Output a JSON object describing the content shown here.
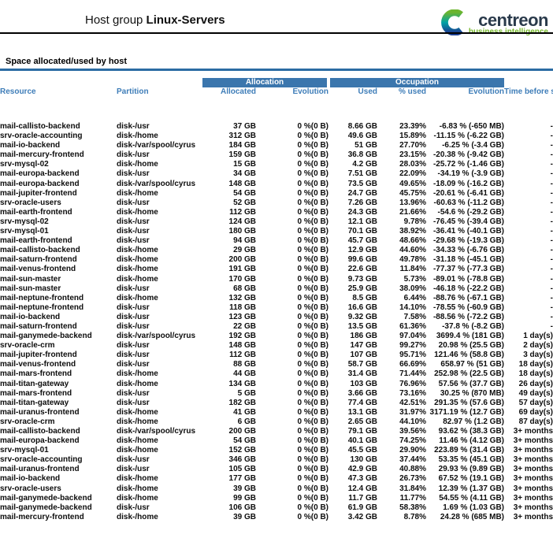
{
  "header": {
    "title_label": "Host group",
    "title_value": "Linux-Servers",
    "logo": {
      "brand": "centreon",
      "tagline": "business intelligence"
    }
  },
  "section_title": "Space allocated/used by host",
  "table": {
    "group_headers": {
      "allocation": "Allocation",
      "occupation": "Occupation"
    },
    "column_headers": {
      "resource": "Resource",
      "partition": "Partition",
      "allocated": "Allocated",
      "allocation_evolution": "Evolution",
      "used": "Used",
      "pct_used": "% used",
      "occupation_evolution": "Evolution",
      "time_before_saturation": "Time before saturation"
    },
    "column_keys": [
      "resource",
      "partition",
      "allocated",
      "allocation-evolution",
      "used",
      "pct-used",
      "occupation-evolution",
      "time-before-saturation"
    ],
    "rows": [
      [
        "mail-callisto-backend",
        "disk-/usr",
        "37 GB",
        "0 %(0 B)",
        "8.66 GB",
        "23.39%",
        "-6.83 % (-650 MB)",
        "-"
      ],
      [
        "srv-oracle-accounting",
        "disk-/home",
        "312 GB",
        "0 %(0 B)",
        "49.6 GB",
        "15.89%",
        "-11.15 % (-6.22 GB)",
        "-"
      ],
      [
        "mail-io-backend",
        "disk-/var/spool/cyrus",
        "184 GB",
        "0 %(0 B)",
        "51 GB",
        "27.70%",
        "-6.25 % (-3.4 GB)",
        "-"
      ],
      [
        "mail-mercury-frontend",
        "disk-/usr",
        "159 GB",
        "0 %(0 B)",
        "36.8 GB",
        "23.15%",
        "-20.38 % (-9.42 GB)",
        "-"
      ],
      [
        "srv-mysql-02",
        "disk-/home",
        "15 GB",
        "0 %(0 B)",
        "4.2 GB",
        "28.03%",
        "-25.72 % (-1.46 GB)",
        "-"
      ],
      [
        "mail-europa-backend",
        "disk-/usr",
        "34 GB",
        "0 %(0 B)",
        "7.51 GB",
        "22.09%",
        "-34.19 % (-3.9 GB)",
        "-"
      ],
      [
        "mail-europa-backend",
        "disk-/var/spool/cyrus",
        "148 GB",
        "0 %(0 B)",
        "73.5 GB",
        "49.65%",
        "-18.09 % (-16.2 GB)",
        "-"
      ],
      [
        "mail-jupiter-frontend",
        "disk-/home",
        "54 GB",
        "0 %(0 B)",
        "24.7 GB",
        "45.75%",
        "-20.61 % (-6.41 GB)",
        "-"
      ],
      [
        "srv-oracle-users",
        "disk-/usr",
        "52 GB",
        "0 %(0 B)",
        "7.26 GB",
        "13.96%",
        "-60.63 % (-11.2 GB)",
        "-"
      ],
      [
        "mail-earth-frontend",
        "disk-/home",
        "112 GB",
        "0 %(0 B)",
        "24.3 GB",
        "21.66%",
        "-54.6 % (-29.2 GB)",
        "-"
      ],
      [
        "srv-mysql-02",
        "disk-/usr",
        "124 GB",
        "0 %(0 B)",
        "12.1 GB",
        "9.78%",
        "-76.45 % (-39.4 GB)",
        "-"
      ],
      [
        "srv-mysql-01",
        "disk-/usr",
        "180 GB",
        "0 %(0 B)",
        "70.1 GB",
        "38.92%",
        "-36.41 % (-40.1 GB)",
        "-"
      ],
      [
        "mail-earth-frontend",
        "disk-/usr",
        "94 GB",
        "0 %(0 B)",
        "45.7 GB",
        "48.66%",
        "-29.68 % (-19.3 GB)",
        "-"
      ],
      [
        "mail-callisto-backend",
        "disk-/home",
        "29 GB",
        "0 %(0 B)",
        "12.9 GB",
        "44.60%",
        "-34.33 % (-6.76 GB)",
        "-"
      ],
      [
        "mail-saturn-frontend",
        "disk-/home",
        "200 GB",
        "0 %(0 B)",
        "99.6 GB",
        "49.78%",
        "-31.18 % (-45.1 GB)",
        "-"
      ],
      [
        "mail-venus-frontend",
        "disk-/home",
        "191 GB",
        "0 %(0 B)",
        "22.6 GB",
        "11.84%",
        "-77.37 % (-77.3 GB)",
        "-"
      ],
      [
        "mail-sun-master",
        "disk-/home",
        "170 GB",
        "0 %(0 B)",
        "9.73 GB",
        "5.73%",
        "-89.01 % (-78.8 GB)",
        "-"
      ],
      [
        "mail-sun-master",
        "disk-/usr",
        "68 GB",
        "0 %(0 B)",
        "25.9 GB",
        "38.09%",
        "-46.18 % (-22.2 GB)",
        "-"
      ],
      [
        "mail-neptune-frontend",
        "disk-/home",
        "132 GB",
        "0 %(0 B)",
        "8.5 GB",
        "6.44%",
        "-88.76 % (-67.1 GB)",
        "-"
      ],
      [
        "mail-neptune-frontend",
        "disk-/usr",
        "118 GB",
        "0 %(0 B)",
        "16.6 GB",
        "14.10%",
        "-78.55 % (-60.9 GB)",
        "-"
      ],
      [
        "mail-io-backend",
        "disk-/usr",
        "123 GB",
        "0 %(0 B)",
        "9.32 GB",
        "7.58%",
        "-88.56 % (-72.2 GB)",
        "-"
      ],
      [
        "mail-saturn-frontend",
        "disk-/usr",
        "22 GB",
        "0 %(0 B)",
        "13.5 GB",
        "61.36%",
        "-37.8 % (-8.2 GB)",
        "-"
      ],
      [
        "mail-ganymede-backend",
        "disk-/var/spool/cyrus",
        "192 GB",
        "0 %(0 B)",
        "186 GB",
        "97.04%",
        "3699.4 % (181 GB)",
        "1 day(s)"
      ],
      [
        "srv-oracle-crm",
        "disk-/usr",
        "148 GB",
        "0 %(0 B)",
        "147 GB",
        "99.27%",
        "20.98 % (25.5 GB)",
        "2 day(s)"
      ],
      [
        "mail-jupiter-frontend",
        "disk-/usr",
        "112 GB",
        "0 %(0 B)",
        "107 GB",
        "95.71%",
        "121.46 % (58.8 GB)",
        "3 day(s)"
      ],
      [
        "mail-venus-frontend",
        "disk-/usr",
        "88 GB",
        "0 %(0 B)",
        "58.7 GB",
        "66.69%",
        "658.97 % (51 GB)",
        "18 day(s)"
      ],
      [
        "mail-mars-frontend",
        "disk-/home",
        "44 GB",
        "0 %(0 B)",
        "31.4 GB",
        "71.44%",
        "252.98 % (22.5 GB)",
        "18 day(s)"
      ],
      [
        "mail-titan-gateway",
        "disk-/home",
        "134 GB",
        "0 %(0 B)",
        "103 GB",
        "76.96%",
        "57.56 % (37.7 GB)",
        "26 day(s)"
      ],
      [
        "mail-mars-frontend",
        "disk-/usr",
        "5 GB",
        "0 %(0 B)",
        "3.66 GB",
        "73.16%",
        "30.25 % (870 MB)",
        "49 day(s)"
      ],
      [
        "mail-titan-gateway",
        "disk-/usr",
        "182 GB",
        "0 %(0 B)",
        "77.4 GB",
        "42.51%",
        "291.35 % (57.6 GB)",
        "57 day(s)"
      ],
      [
        "mail-uranus-frontend",
        "disk-/home",
        "41 GB",
        "0 %(0 B)",
        "13.1 GB",
        "31.97%",
        "3171.19 % (12.7 GB)",
        "69 day(s)"
      ],
      [
        "srv-oracle-crm",
        "disk-/home",
        "6 GB",
        "0 %(0 B)",
        "2.65 GB",
        "44.10%",
        "82.97 % (1.2 GB)",
        "87 day(s)"
      ],
      [
        "mail-callisto-backend",
        "disk-/var/spool/cyrus",
        "200 GB",
        "0 %(0 B)",
        "79.1 GB",
        "39.56%",
        "93.62 % (38.3 GB)",
        "3+ months"
      ],
      [
        "mail-europa-backend",
        "disk-/home",
        "54 GB",
        "0 %(0 B)",
        "40.1 GB",
        "74.25%",
        "11.46 % (4.12 GB)",
        "3+ months"
      ],
      [
        "srv-mysql-01",
        "disk-/home",
        "152 GB",
        "0 %(0 B)",
        "45.5 GB",
        "29.90%",
        "223.89 % (31.4 GB)",
        "3+ months"
      ],
      [
        "srv-oracle-accounting",
        "disk-/usr",
        "346 GB",
        "0 %(0 B)",
        "130 GB",
        "37.44%",
        "53.35 % (45.1 GB)",
        "3+ months"
      ],
      [
        "mail-uranus-frontend",
        "disk-/usr",
        "105 GB",
        "0 %(0 B)",
        "42.9 GB",
        "40.88%",
        "29.93 % (9.89 GB)",
        "3+ months"
      ],
      [
        "mail-io-backend",
        "disk-/home",
        "177 GB",
        "0 %(0 B)",
        "47.3 GB",
        "26.73%",
        "67.52 % (19.1 GB)",
        "3+ months"
      ],
      [
        "srv-oracle-users",
        "disk-/home",
        "39 GB",
        "0 %(0 B)",
        "12.4 GB",
        "31.84%",
        "12.39 % (1.37 GB)",
        "3+ months"
      ],
      [
        "mail-ganymede-backend",
        "disk-/home",
        "99 GB",
        "0 %(0 B)",
        "11.7 GB",
        "11.77%",
        "54.55 % (4.11 GB)",
        "3+ months"
      ],
      [
        "mail-ganymede-backend",
        "disk-/usr",
        "106 GB",
        "0 %(0 B)",
        "61.9 GB",
        "58.38%",
        "1.69 % (1.03 GB)",
        "3+ months"
      ],
      [
        "mail-mercury-frontend",
        "disk-/home",
        "39 GB",
        "0 %(0 B)",
        "3.42 GB",
        "8.78%",
        "24.28 % (685 MB)",
        "3+ months"
      ]
    ]
  },
  "colors": {
    "bar_blue": "#3b76ad",
    "header_text_blue": "#3e7db8",
    "section_rule_blue": "#2b6ca3",
    "brand_dark": "#2a3a4b",
    "brand_green": "#76b82a",
    "logo_gradient": [
      "#6cb52e",
      "#00a3a5",
      "#1b3e91"
    ]
  }
}
